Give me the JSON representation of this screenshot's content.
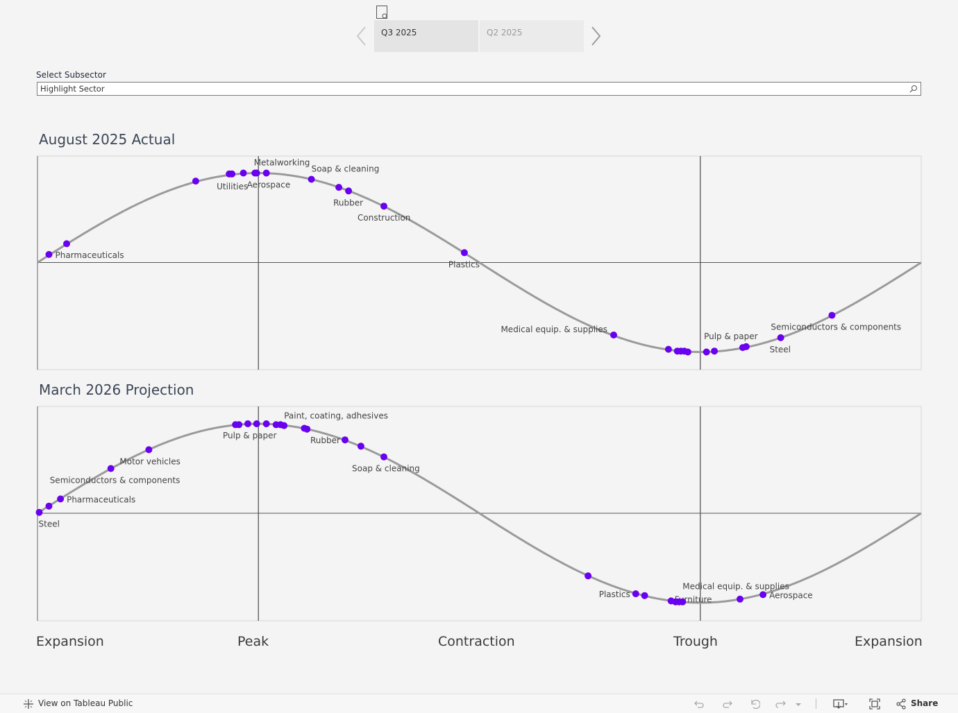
{
  "navigator": {
    "tabs": [
      {
        "label": "Q3 2025",
        "active": true
      },
      {
        "label": "Q2 2025",
        "active": false
      }
    ]
  },
  "filter": {
    "label": "Select Subsector",
    "placeholder": "Highlight Sector"
  },
  "phases": [
    "Expansion",
    "Peak",
    "Contraction",
    "Trough",
    "Expansion"
  ],
  "colors": {
    "dot": "#6a00f0",
    "curve": "#9a9a9a",
    "reference_line": "#555555",
    "plot_background": "#f4f4f4"
  },
  "toolbar": {
    "view_on": "View on Tableau Public",
    "share": "Share"
  },
  "chart_data": [
    {
      "type": "scatter",
      "title": "August 2025 Actual",
      "curve": "sine",
      "x_range": [
        0,
        1
      ],
      "y_range": [
        -1.2,
        1.2
      ],
      "reference_lines": {
        "x": [
          0.25,
          0.75
        ],
        "y": [
          0
        ]
      },
      "points": [
        {
          "x": 0.013,
          "y": 0.09,
          "label": "Pharmaceuticals"
        },
        {
          "x": 0.033,
          "y": 0.21,
          "label": ""
        },
        {
          "x": 0.179,
          "y": 0.91,
          "label": ""
        },
        {
          "x": 0.217,
          "y": 0.99,
          "label": ""
        },
        {
          "x": 0.22,
          "y": 0.99,
          "label": "Utilities"
        },
        {
          "x": 0.233,
          "y": 1.0,
          "label": ""
        },
        {
          "x": 0.246,
          "y": 1.0,
          "label": ""
        },
        {
          "x": 0.248,
          "y": 1.0,
          "label": "Aerospace"
        },
        {
          "x": 0.259,
          "y": 1.0,
          "label": "Metalworking"
        },
        {
          "x": 0.31,
          "y": 0.93,
          "label": "Soap & cleaning"
        },
        {
          "x": 0.341,
          "y": 0.84,
          "label": ""
        },
        {
          "x": 0.352,
          "y": 0.8,
          "label": "Rubber"
        },
        {
          "x": 0.392,
          "y": 0.63,
          "label": "Construction"
        },
        {
          "x": 0.483,
          "y": 0.11,
          "label": "Plastics"
        },
        {
          "x": 0.652,
          "y": -0.81,
          "label": "Medical equip. & supplies"
        },
        {
          "x": 0.714,
          "y": -0.97,
          "label": ""
        },
        {
          "x": 0.724,
          "y": -0.99,
          "label": ""
        },
        {
          "x": 0.728,
          "y": -0.99,
          "label": ""
        },
        {
          "x": 0.732,
          "y": -0.99,
          "label": ""
        },
        {
          "x": 0.736,
          "y": -1.0,
          "label": ""
        },
        {
          "x": 0.757,
          "y": -1.0,
          "label": ""
        },
        {
          "x": 0.766,
          "y": -0.99,
          "label": "Pulp & paper"
        },
        {
          "x": 0.798,
          "y": -0.95,
          "label": ""
        },
        {
          "x": 0.802,
          "y": -0.94,
          "label": ""
        },
        {
          "x": 0.841,
          "y": -0.84,
          "label": "Steel"
        },
        {
          "x": 0.899,
          "y": -0.59,
          "label": "Semiconductors & components"
        }
      ]
    },
    {
      "type": "scatter",
      "title": "March 2026 Projection",
      "curve": "sine",
      "x_range": [
        0,
        1
      ],
      "y_range": [
        -1.2,
        1.2
      ],
      "reference_lines": {
        "x": [
          0.25,
          0.75
        ],
        "y": [
          0
        ]
      },
      "points": [
        {
          "x": 0.002,
          "y": 0.01,
          "label": "Steel"
        },
        {
          "x": 0.013,
          "y": 0.08,
          "label": ""
        },
        {
          "x": 0.026,
          "y": 0.16,
          "label": "Pharmaceuticals"
        },
        {
          "x": 0.083,
          "y": 0.5,
          "label": "Semiconductors & components"
        },
        {
          "x": 0.126,
          "y": 0.71,
          "label": "Motor vehicles"
        },
        {
          "x": 0.224,
          "y": 0.99,
          "label": ""
        },
        {
          "x": 0.228,
          "y": 0.99,
          "label": ""
        },
        {
          "x": 0.238,
          "y": 1.0,
          "label": "Pulp & paper"
        },
        {
          "x": 0.248,
          "y": 1.0,
          "label": ""
        },
        {
          "x": 0.259,
          "y": 1.0,
          "label": ""
        },
        {
          "x": 0.27,
          "y": 0.99,
          "label": ""
        },
        {
          "x": 0.275,
          "y": 0.99,
          "label": ""
        },
        {
          "x": 0.279,
          "y": 0.98,
          "label": "Paint, coating, adhesives"
        },
        {
          "x": 0.302,
          "y": 0.95,
          "label": ""
        },
        {
          "x": 0.305,
          "y": 0.94,
          "label": ""
        },
        {
          "x": 0.348,
          "y": 0.82,
          "label": "Rubber"
        },
        {
          "x": 0.366,
          "y": 0.75,
          "label": ""
        },
        {
          "x": 0.392,
          "y": 0.63,
          "label": "Soap & cleaning"
        },
        {
          "x": 0.623,
          "y": -0.7,
          "label": ""
        },
        {
          "x": 0.677,
          "y": -0.9,
          "label": "Plastics"
        },
        {
          "x": 0.687,
          "y": -0.92,
          "label": ""
        },
        {
          "x": 0.717,
          "y": -0.98,
          "label": "Furniture"
        },
        {
          "x": 0.722,
          "y": -0.99,
          "label": ""
        },
        {
          "x": 0.726,
          "y": -0.99,
          "label": ""
        },
        {
          "x": 0.73,
          "y": -0.99,
          "label": "Medical equip. & supplies"
        },
        {
          "x": 0.795,
          "y": -0.96,
          "label": ""
        },
        {
          "x": 0.821,
          "y": -0.91,
          "label": "Aerospace"
        }
      ]
    }
  ]
}
